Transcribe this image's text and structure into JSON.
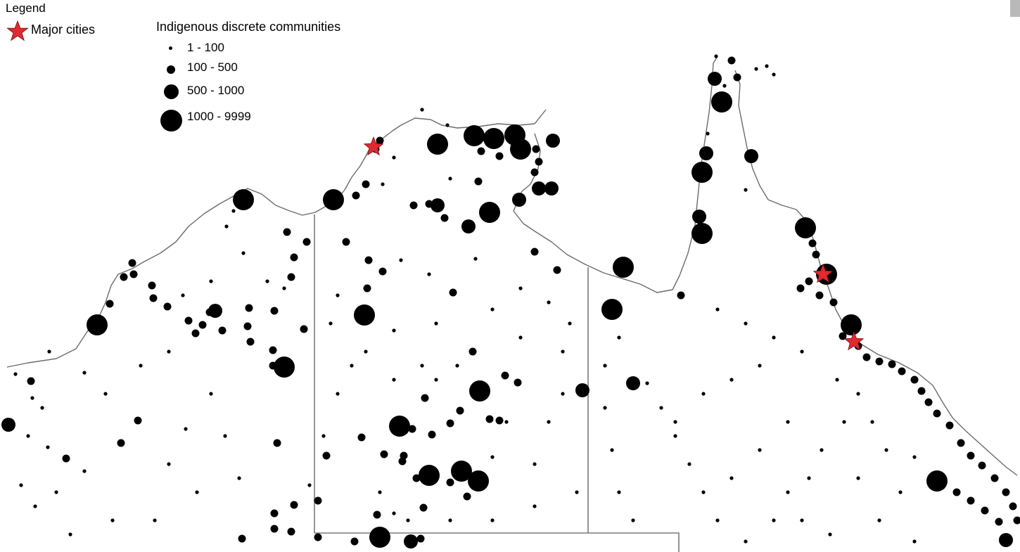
{
  "legend": {
    "title": "Legend",
    "cities_label": "Major cities",
    "communities_title": "Indigenous discrete communities",
    "classes": [
      {
        "label": "1 - 100"
      },
      {
        "label": "100 - 500"
      },
      {
        "label": "500 - 1000"
      },
      {
        "label": "1000 - 9999"
      }
    ]
  },
  "map": {
    "dot_color": "#000000",
    "star_color": "#e02a2f",
    "coast_color": "#6b6b6b"
  }
}
